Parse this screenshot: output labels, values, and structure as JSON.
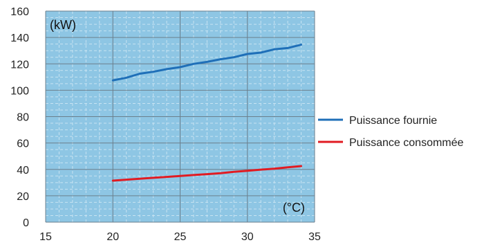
{
  "chart_data": {
    "type": "line",
    "y_unit_label": "(kW)",
    "x_unit_label": "(°C)",
    "xlim": [
      15,
      35
    ],
    "ylim": [
      0,
      160
    ],
    "x_ticks": [
      15,
      20,
      25,
      30,
      35
    ],
    "y_ticks": [
      0,
      20,
      40,
      60,
      80,
      100,
      120,
      140,
      160
    ],
    "grid": true,
    "legend_position": "right",
    "background_color": "#8EC6E4",
    "series": [
      {
        "name": "Puissance fournie",
        "color": "#1F6FB8",
        "x": [
          20,
          21,
          22,
          23,
          24,
          25,
          26,
          27,
          28,
          29,
          30,
          31,
          32,
          33,
          34
        ],
        "y": [
          107.5,
          109.5,
          112.5,
          114,
          116,
          117.5,
          120,
          121.5,
          123.5,
          125,
          127.5,
          128.5,
          131,
          132,
          134.5
        ]
      },
      {
        "name": "Puissance consommée",
        "color": "#E11B22",
        "x": [
          20,
          21,
          22,
          23,
          24,
          25,
          26,
          27,
          28,
          29,
          30,
          31,
          32,
          33,
          34
        ],
        "y": [
          31.5,
          32.2,
          32.9,
          33.6,
          34.3,
          35,
          35.7,
          36.4,
          37.1,
          38.2,
          39,
          39.8,
          40.5,
          41.6,
          42.5
        ]
      }
    ]
  }
}
